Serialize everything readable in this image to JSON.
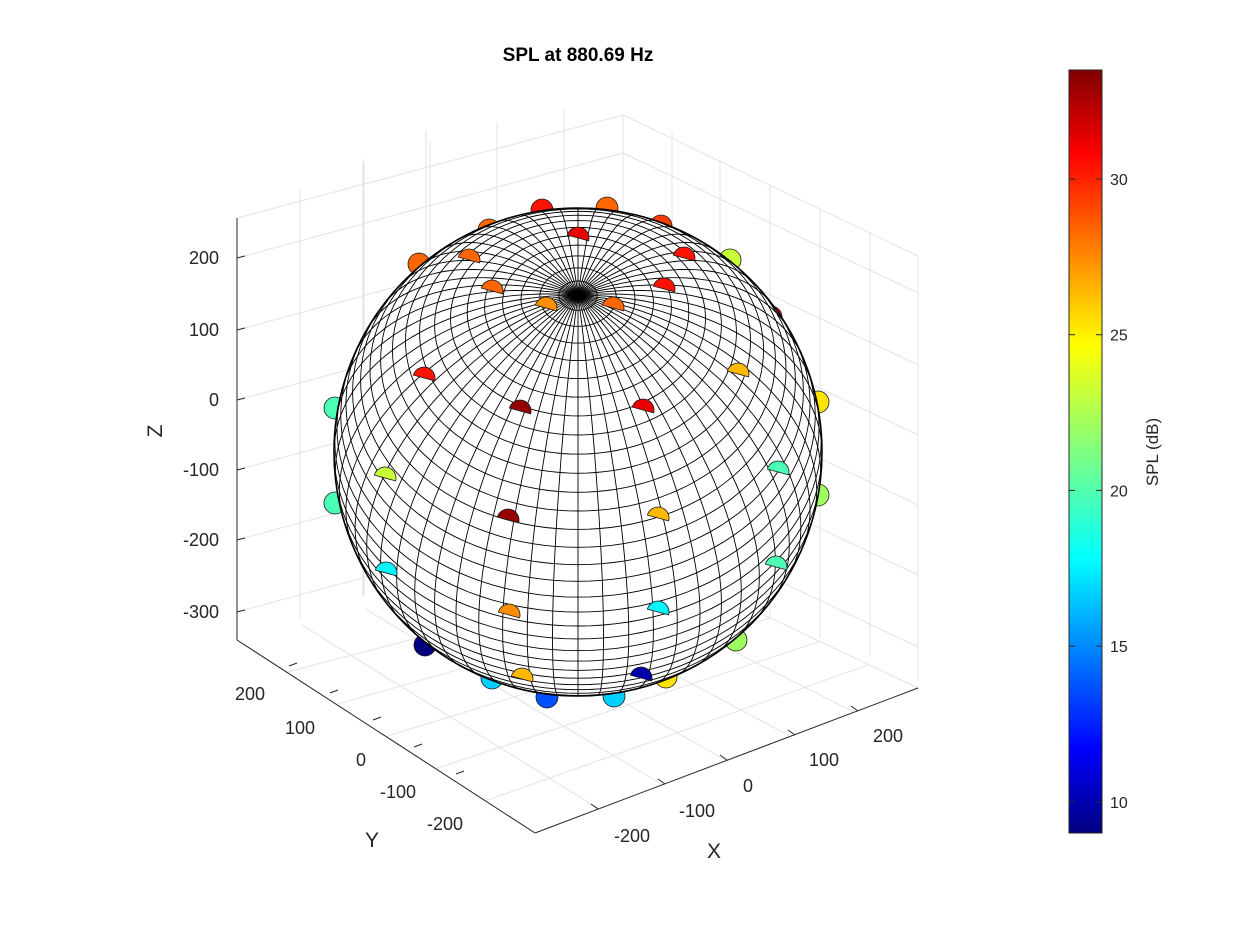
{
  "chart_data": {
    "type": "scatter3d",
    "title": "SPL at 880.69 Hz",
    "xlabel": "X",
    "ylabel": "Y",
    "zlabel": "Z",
    "x_ticks": [
      "-200",
      "-100",
      "0",
      "100",
      "200"
    ],
    "y_ticks": [
      "200",
      "100",
      "0",
      "-100",
      "-200"
    ],
    "z_ticks": [
      "200",
      "100",
      "0",
      "-100",
      "-200",
      "-300"
    ],
    "colorbar": {
      "label": "SPL (dB)",
      "ticks": [
        "30",
        "25",
        "20",
        "15",
        "10"
      ],
      "range": [
        9.0,
        33.5
      ],
      "colormap": "jet"
    },
    "grid": "on",
    "surface": "sphere",
    "points_spl_db": [
      31,
      30,
      28,
      28,
      29,
      28,
      28,
      30,
      28,
      30,
      27,
      23,
      28,
      23,
      31,
      33,
      30,
      20,
      26,
      25,
      23,
      20,
      20,
      33,
      26,
      20,
      18,
      22,
      9,
      27,
      18,
      17,
      14,
      17,
      10,
      25,
      22,
      31,
      26
    ]
  }
}
